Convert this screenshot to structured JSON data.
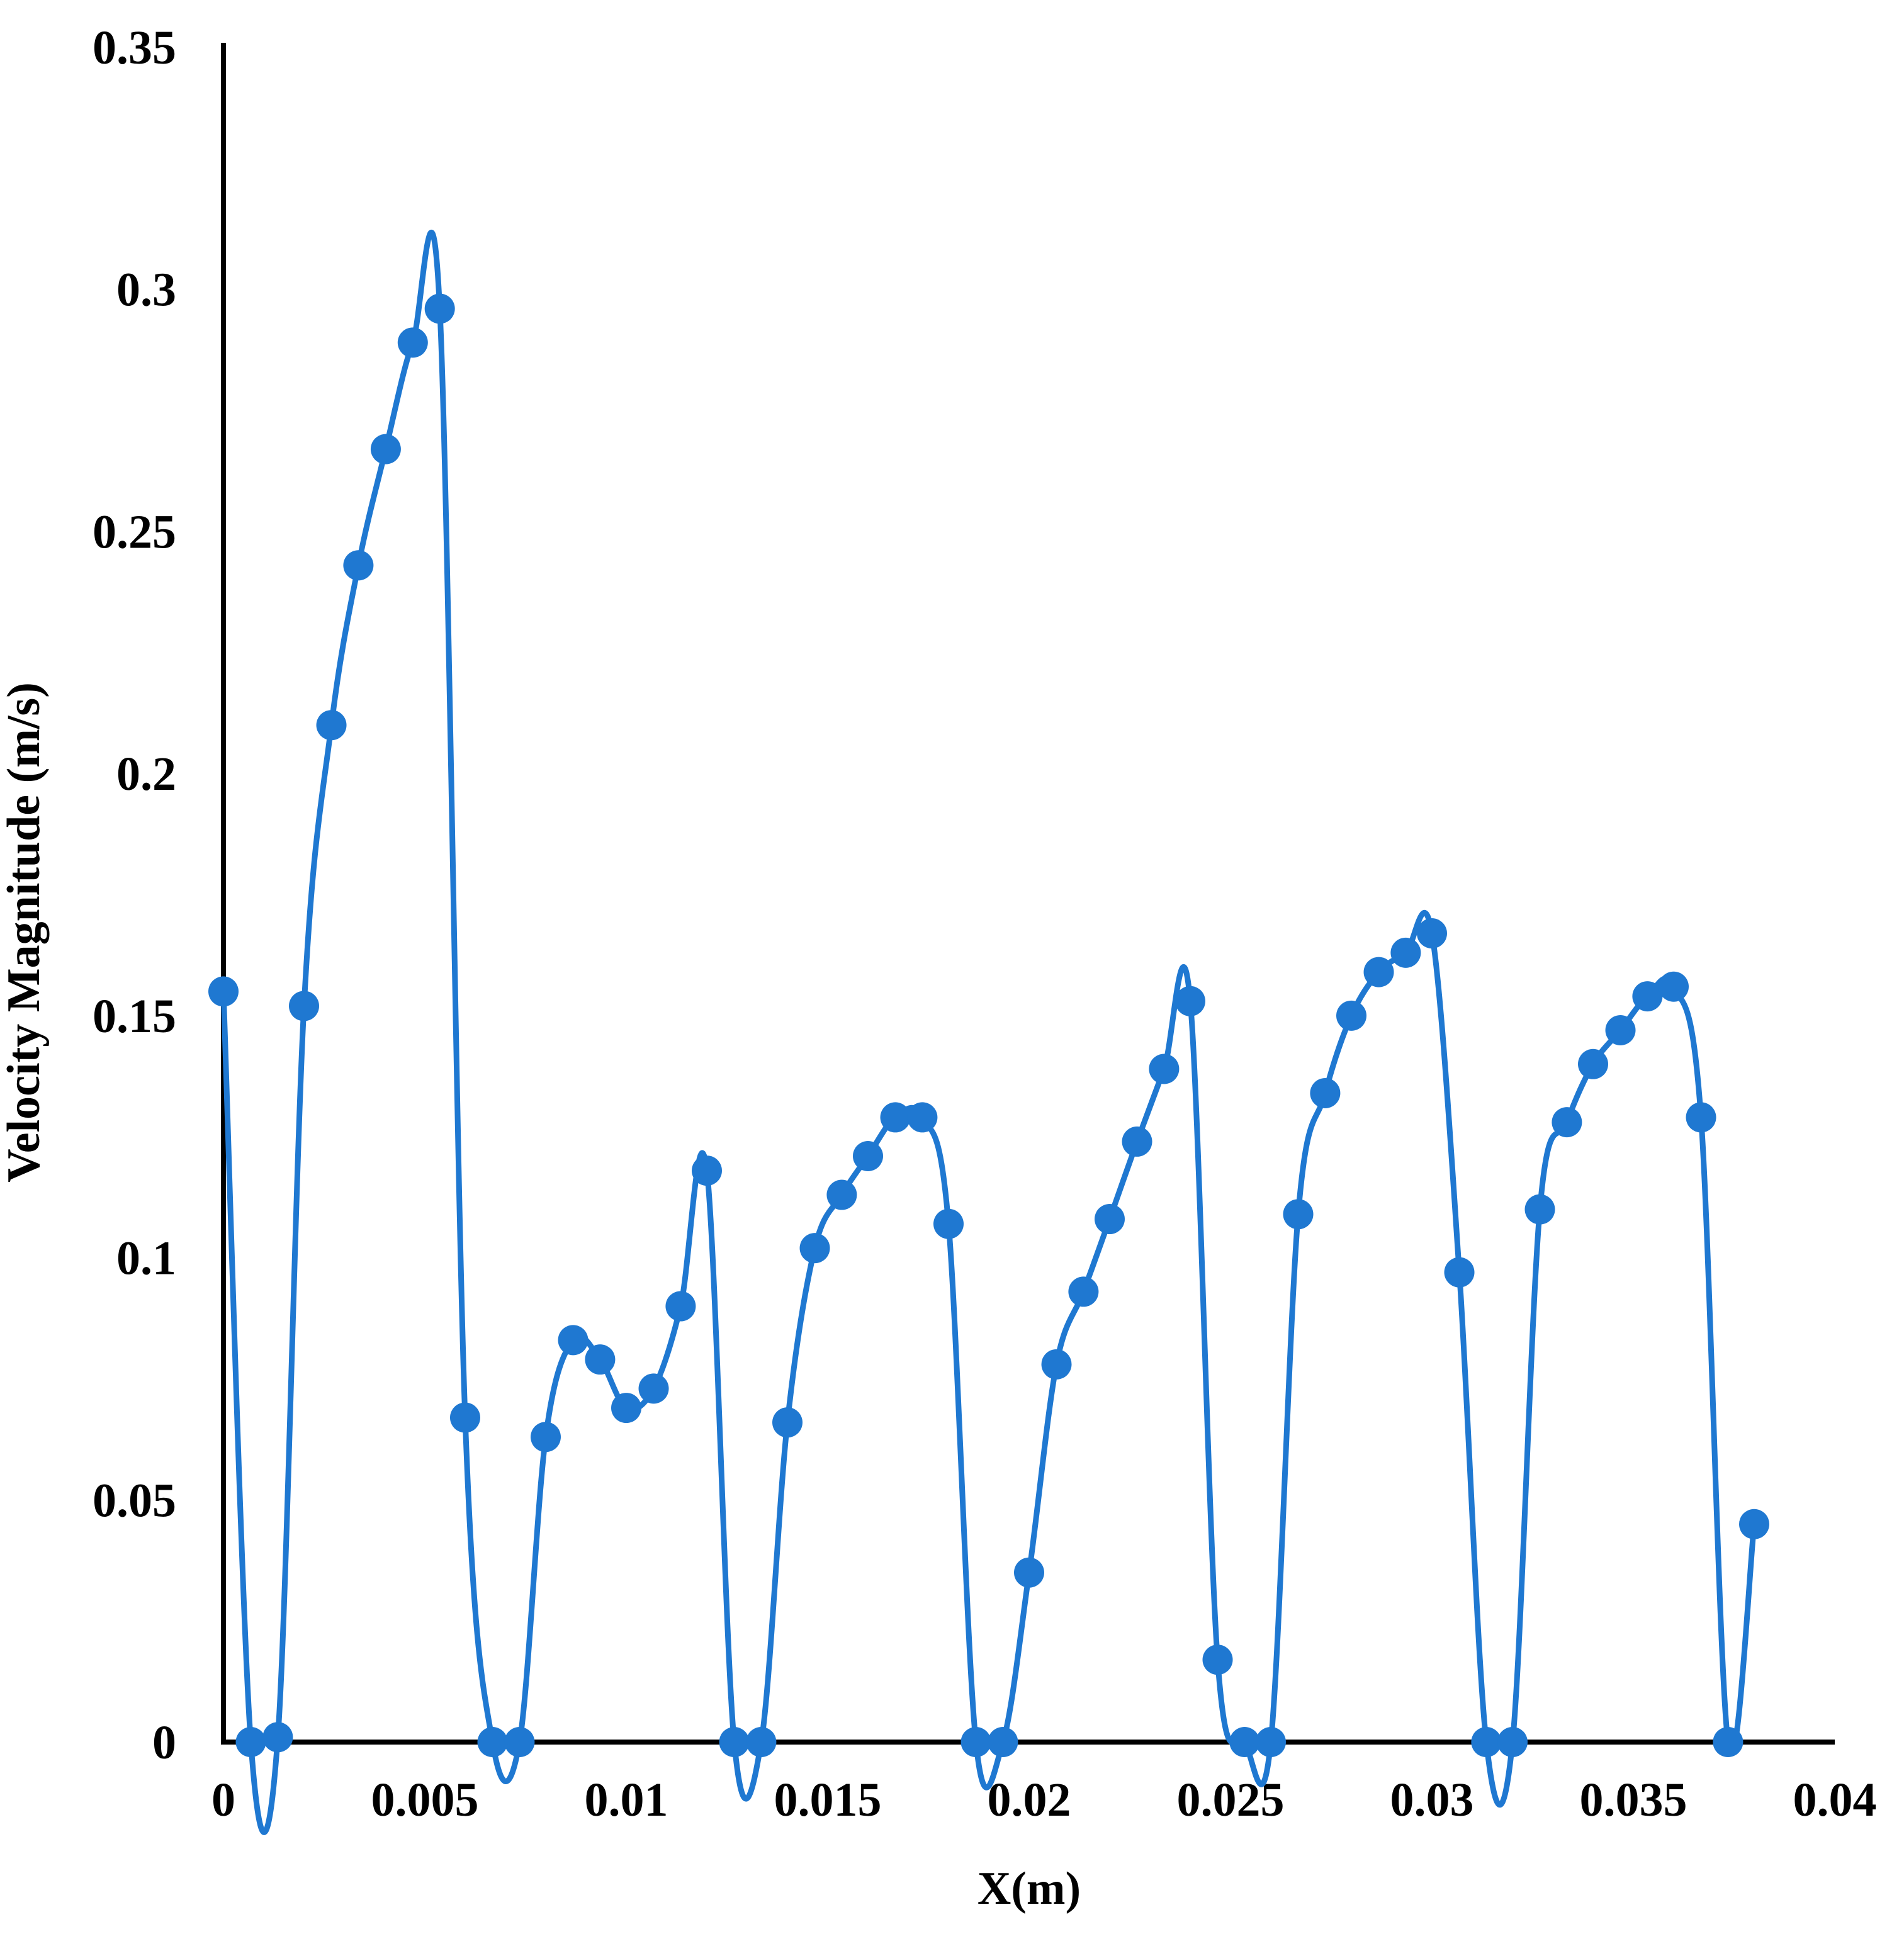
{
  "chart_data": {
    "type": "line",
    "title": "",
    "xlabel": "X(m)",
    "ylabel": "Velocity Magnitude (m/s)",
    "xlim": [
      0,
      0.04
    ],
    "ylim": [
      0,
      0.35
    ],
    "x_ticks": [
      "0",
      "0.005",
      "0.01",
      "0.015",
      "0.02",
      "0.025",
      "0.03",
      "0.035",
      "0.04"
    ],
    "y_ticks": [
      "0",
      "0.05",
      "0.1",
      "0.15",
      "0.2",
      "0.25",
      "0.3",
      "0.35"
    ],
    "grid": false,
    "legend": "none",
    "smoothed": true,
    "markers": true,
    "series_color": "#1f78d1",
    "series": [
      {
        "points": [
          [
            0,
            0.155
          ],
          [
            0.00068,
            0
          ],
          [
            0.00135,
            0.001
          ],
          [
            0.002,
            0.152
          ],
          [
            0.00268,
            0.21
          ],
          [
            0.00335,
            0.243
          ],
          [
            0.00403,
            0.267
          ],
          [
            0.0047,
            0.289
          ],
          [
            0.00537,
            0.296
          ],
          [
            0.006,
            0.067
          ],
          [
            0.00668,
            0
          ],
          [
            0.00735,
            0
          ],
          [
            0.008,
            0.063
          ],
          [
            0.00868,
            0.083
          ],
          [
            0.00935,
            0.079
          ],
          [
            0.01,
            0.069
          ],
          [
            0.01068,
            0.073
          ],
          [
            0.01135,
            0.09
          ],
          [
            0.012,
            0.118
          ],
          [
            0.01268,
            0
          ],
          [
            0.01335,
            0
          ],
          [
            0.014,
            0.066
          ],
          [
            0.01468,
            0.102
          ],
          [
            0.01535,
            0.113
          ],
          [
            0.016,
            0.121
          ],
          [
            0.01668,
            0.129
          ],
          [
            0.01735,
            0.129
          ],
          [
            0.018,
            0.107
          ],
          [
            0.01868,
            0
          ],
          [
            0.01935,
            0
          ],
          [
            0.02,
            0.035
          ],
          [
            0.02068,
            0.078
          ],
          [
            0.02135,
            0.093
          ],
          [
            0.022,
            0.108
          ],
          [
            0.02268,
            0.124
          ],
          [
            0.02335,
            0.139
          ],
          [
            0.024,
            0.153
          ],
          [
            0.02468,
            0.017
          ],
          [
            0.02535,
            0
          ],
          [
            0.026,
            0
          ],
          [
            0.02668,
            0.109
          ],
          [
            0.02735,
            0.134
          ],
          [
            0.028,
            0.15
          ],
          [
            0.02868,
            0.159
          ],
          [
            0.02935,
            0.163
          ],
          [
            0.03,
            0.167
          ],
          [
            0.03068,
            0.097
          ],
          [
            0.03135,
            0
          ],
          [
            0.032,
            0
          ],
          [
            0.03268,
            0.11
          ],
          [
            0.03335,
            0.128
          ],
          [
            0.034,
            0.14
          ],
          [
            0.03468,
            0.147
          ],
          [
            0.03535,
            0.154
          ],
          [
            0.036,
            0.156
          ],
          [
            0.03668,
            0.129
          ],
          [
            0.03735,
            0
          ],
          [
            0.038,
            0.045
          ]
        ]
      }
    ]
  }
}
